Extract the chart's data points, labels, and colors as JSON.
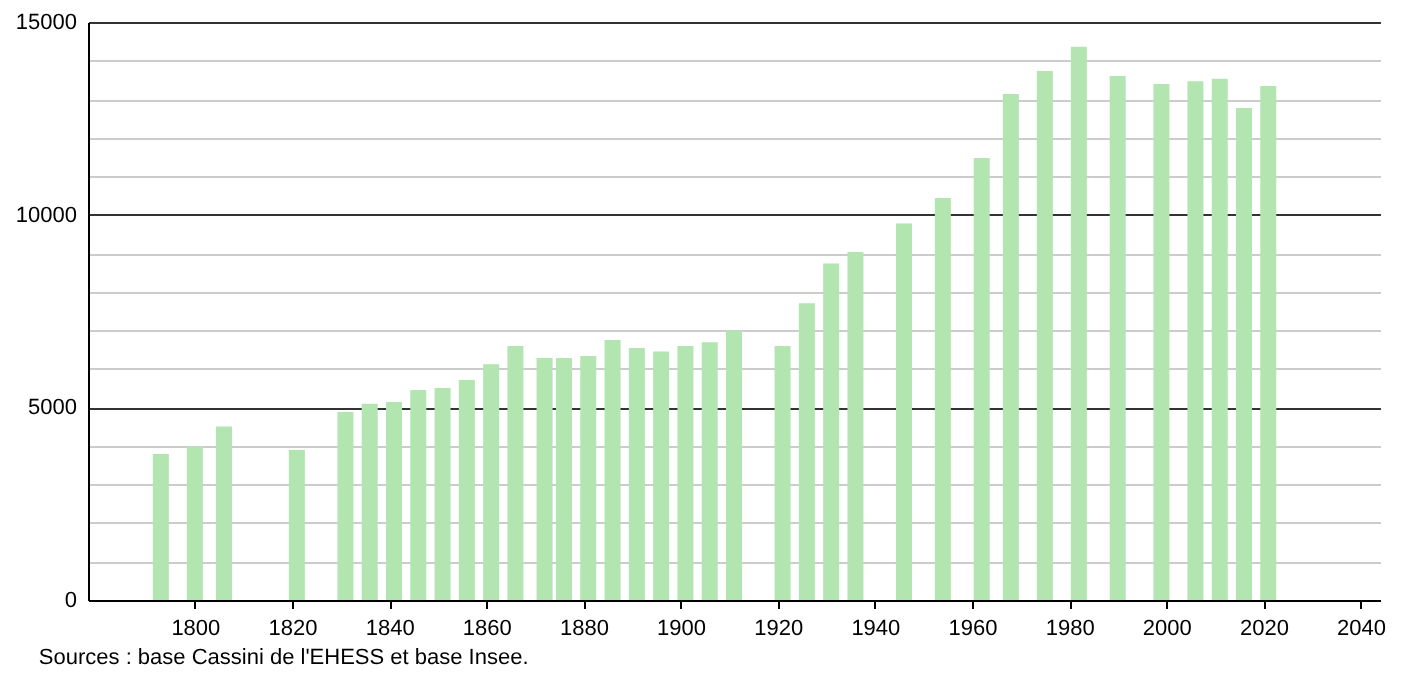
{
  "chart_data": {
    "type": "bar",
    "x": [
      1793,
      1800,
      1806,
      1821,
      1831,
      1836,
      1841,
      1846,
      1851,
      1856,
      1861,
      1866,
      1872,
      1876,
      1881,
      1886,
      1891,
      1896,
      1901,
      1906,
      1911,
      1921,
      1926,
      1931,
      1936,
      1946,
      1954,
      1962,
      1968,
      1975,
      1982,
      1990,
      1999,
      2006,
      2011,
      2016,
      2021
    ],
    "values": [
      3790,
      3980,
      4500,
      3890,
      4880,
      5090,
      5140,
      5450,
      5500,
      5710,
      6120,
      6590,
      6280,
      6280,
      6330,
      6750,
      6540,
      6450,
      6590,
      6690,
      6990,
      6590,
      7700,
      8730,
      9030,
      9770,
      10430,
      11470,
      13130,
      13730,
      14360,
      13600,
      13390,
      13460,
      13530,
      12770,
      13340
    ],
    "color": "#b2e5b0",
    "xlim": [
      1778,
      2044
    ],
    "xticks": [
      1800,
      1820,
      1840,
      1860,
      1880,
      1900,
      1920,
      1940,
      1960,
      1980,
      2000,
      2020,
      2040
    ],
    "ylim": [
      0,
      15000
    ],
    "yticks": [
      0,
      {
        "value": 1000,
        "label": null
      },
      {
        "value": 2000,
        "label": null
      },
      {
        "value": 3000,
        "label": null
      },
      {
        "value": 4000,
        "label": null
      },
      5000,
      {
        "value": 6000,
        "label": null
      },
      {
        "value": 7000,
        "label": null
      },
      {
        "value": 8000,
        "label": null
      },
      {
        "value": 9000,
        "label": null
      },
      10000,
      {
        "value": 11000,
        "label": null
      },
      {
        "value": 12000,
        "label": null
      },
      {
        "value": 13000,
        "label": null
      },
      {
        "value": 14000,
        "label": null
      },
      15000
    ],
    "grid": "y",
    "annotations": [
      "Sources : base Cassini de l'EHESS et base Insee."
    ]
  }
}
